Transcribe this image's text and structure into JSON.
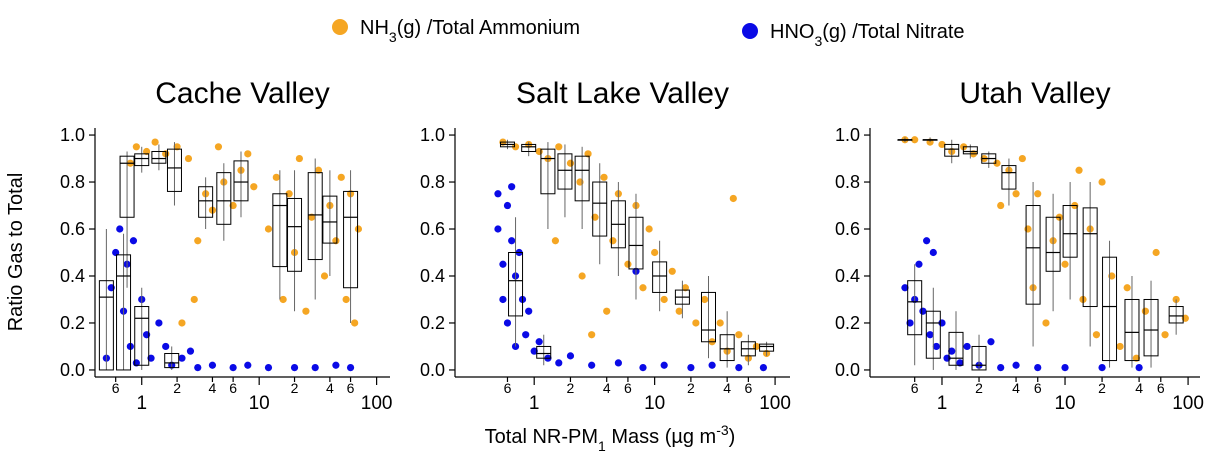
{
  "chart_data": [
    {
      "type": "scatter",
      "title": "Cache Valley",
      "ylabel": "Ratio Gas to Total",
      "xlog": true,
      "xlim": [
        0.4,
        130
      ],
      "ylim": [
        -0.03,
        1.03
      ],
      "xticks": [
        {
          "value": 0.6,
          "label": "6"
        },
        1,
        2,
        4,
        6,
        10,
        {
          "value": 20,
          "label": "2"
        },
        {
          "value": 40,
          "label": "4"
        },
        {
          "value": 60,
          "label": "6"
        },
        100
      ],
      "yticks": [
        {
          "value": 0,
          "label": "0.0"
        },
        0.2,
        0.4,
        0.6,
        0.8,
        {
          "value": 1,
          "label": "1.0"
        }
      ],
      "series": [
        {
          "name": "NH3(g) /Total Ammonium",
          "color": "#f5a623",
          "x": [
            0.8,
            0.9,
            1.1,
            1.3,
            1.6,
            2,
            2.5,
            3,
            3.5,
            4,
            5,
            6,
            7,
            8,
            9,
            12,
            14,
            16,
            18,
            20,
            22,
            25,
            28,
            32,
            36,
            40,
            45,
            50,
            55,
            60,
            65,
            70,
            2.8,
            2.2,
            4.5
          ],
          "values": [
            0.88,
            0.95,
            0.93,
            0.97,
            0.92,
            0.95,
            0.9,
            0.55,
            0.75,
            0.68,
            0.8,
            0.7,
            0.85,
            0.92,
            0.78,
            0.6,
            0.82,
            0.3,
            0.75,
            0.5,
            0.9,
            0.25,
            0.65,
            0.85,
            0.4,
            0.7,
            0.55,
            0.82,
            0.3,
            0.75,
            0.2,
            0.6,
            0.3,
            0.2,
            0.95
          ],
          "boxes": [
            {
              "x": 0.75,
              "low": 0.35,
              "q1": 0.65,
              "median": 0.88,
              "q3": 0.91,
              "high": 0.93
            },
            {
              "x": 1,
              "low": 0.84,
              "q1": 0.87,
              "median": 0.9,
              "q3": 0.92,
              "high": 0.95
            },
            {
              "x": 1.4,
              "low": 0.85,
              "q1": 0.88,
              "median": 0.9,
              "q3": 0.93,
              "high": 0.96
            },
            {
              "x": 1.9,
              "low": 0.7,
              "q1": 0.76,
              "median": 0.86,
              "q3": 0.94,
              "high": 0.97
            },
            {
              "x": 3.5,
              "low": 0.6,
              "q1": 0.65,
              "median": 0.72,
              "q3": 0.78,
              "high": 0.82
            },
            {
              "x": 5,
              "low": 0.55,
              "q1": 0.62,
              "median": 0.72,
              "q3": 0.84,
              "high": 0.88
            },
            {
              "x": 7,
              "low": 0.65,
              "q1": 0.72,
              "median": 0.8,
              "q3": 0.89,
              "high": 0.93
            },
            {
              "x": 15,
              "low": 0.3,
              "q1": 0.44,
              "median": 0.7,
              "q3": 0.75,
              "high": 0.85
            },
            {
              "x": 20,
              "low": 0.25,
              "q1": 0.42,
              "median": 0.61,
              "q3": 0.73,
              "high": 0.85
            },
            {
              "x": 30,
              "low": 0.3,
              "q1": 0.47,
              "median": 0.66,
              "q3": 0.84,
              "high": 0.9
            },
            {
              "x": 40,
              "low": 0.4,
              "q1": 0.54,
              "median": 0.63,
              "q3": 0.74,
              "high": 0.85
            },
            {
              "x": 60,
              "low": 0.2,
              "q1": 0.35,
              "median": 0.65,
              "q3": 0.76,
              "high": 0.85
            }
          ]
        },
        {
          "name": "HNO3(g) /Total Nitrate",
          "color": "#0a0ae6",
          "x": [
            0.5,
            0.55,
            0.6,
            0.65,
            0.7,
            0.75,
            0.8,
            0.85,
            0.9,
            1,
            1.1,
            1.2,
            1.4,
            1.6,
            1.8,
            2.2,
            2.6,
            3,
            4,
            6,
            8,
            12,
            20,
            30,
            45,
            60
          ],
          "values": [
            0.05,
            0.35,
            0.5,
            0.6,
            0.25,
            0.45,
            0.1,
            0.55,
            0.03,
            0.3,
            0.15,
            0.05,
            0.2,
            0.1,
            0.02,
            0.05,
            0.08,
            0.01,
            0.02,
            0.01,
            0.02,
            0.01,
            0.01,
            0.01,
            0.02,
            0.01
          ],
          "boxes": [
            {
              "x": 0.5,
              "low": 0,
              "q1": 0,
              "median": 0.31,
              "q3": 0.38,
              "high": 0.6
            },
            {
              "x": 0.7,
              "low": 0,
              "q1": 0,
              "median": 0.4,
              "q3": 0.49,
              "high": 0.58
            },
            {
              "x": 1,
              "low": 0,
              "q1": 0.02,
              "median": 0.22,
              "q3": 0.27,
              "high": 0.35
            },
            {
              "x": 1.8,
              "low": 0,
              "q1": 0.01,
              "median": 0.03,
              "q3": 0.07,
              "high": 0.1
            }
          ]
        }
      ]
    },
    {
      "type": "scatter",
      "title": "Salt Lake Valley",
      "xlabel": [
        "Total NR-PM",
        "1",
        " Mass (µg m",
        "-3",
        ")"
      ],
      "xlog": true,
      "xlim": [
        0.22,
        133
      ],
      "ylim": [
        -0.03,
        1.03
      ],
      "xticks": [
        {
          "value": 0.6,
          "label": "6"
        },
        1,
        2,
        4,
        6,
        10,
        {
          "value": 20,
          "label": "2"
        },
        {
          "value": 40,
          "label": "4"
        },
        {
          "value": 60,
          "label": "6"
        },
        100
      ],
      "yticks": [
        {
          "value": 0,
          "label": "0.0"
        },
        0.2,
        0.4,
        0.6,
        0.8,
        {
          "value": 1,
          "label": "1.0"
        }
      ],
      "series": [
        {
          "color": "#f5a623",
          "x": [
            0.55,
            0.7,
            0.9,
            1.1,
            1.3,
            1.6,
            2,
            2.4,
            2.8,
            3.2,
            3.8,
            4.5,
            5,
            6,
            7,
            8,
            9,
            10,
            12,
            14,
            16,
            18,
            22,
            26,
            30,
            35,
            40,
            45,
            50,
            60,
            70,
            85,
            1.5,
            2.5,
            4,
            3
          ],
          "values": [
            0.97,
            0.95,
            0.96,
            0.93,
            0.9,
            0.95,
            0.88,
            0.8,
            0.92,
            0.65,
            0.82,
            0.55,
            0.75,
            0.45,
            0.7,
            0.35,
            0.6,
            0.5,
            0.3,
            0.42,
            0.25,
            0.35,
            0.2,
            0.3,
            0.12,
            0.2,
            0.08,
            0.73,
            0.15,
            0.05,
            0.1,
            0.07,
            0.55,
            0.4,
            0.25,
            0.15
          ],
          "boxes": [
            {
              "x": 0.6,
              "low": 0.94,
              "q1": 0.95,
              "median": 0.96,
              "q3": 0.97,
              "high": 0.98
            },
            {
              "x": 0.9,
              "low": 0.91,
              "q1": 0.93,
              "median": 0.95,
              "q3": 0.96,
              "high": 0.97
            },
            {
              "x": 1.3,
              "low": 0.6,
              "q1": 0.75,
              "median": 0.9,
              "q3": 0.94,
              "high": 0.97
            },
            {
              "x": 1.8,
              "low": 0.65,
              "q1": 0.77,
              "median": 0.85,
              "q3": 0.92,
              "high": 0.96
            },
            {
              "x": 2.5,
              "low": 0.6,
              "q1": 0.72,
              "median": 0.85,
              "q3": 0.91,
              "high": 0.95
            },
            {
              "x": 3.5,
              "low": 0.45,
              "q1": 0.57,
              "median": 0.71,
              "q3": 0.8,
              "high": 0.88
            },
            {
              "x": 5,
              "low": 0.4,
              "q1": 0.52,
              "median": 0.62,
              "q3": 0.72,
              "high": 0.8
            },
            {
              "x": 7,
              "low": 0.3,
              "q1": 0.43,
              "median": 0.53,
              "q3": 0.65,
              "high": 0.75
            },
            {
              "x": 11,
              "low": 0.25,
              "q1": 0.33,
              "median": 0.4,
              "q3": 0.46,
              "high": 0.55
            },
            {
              "x": 17,
              "low": 0.22,
              "q1": 0.28,
              "median": 0.31,
              "q3": 0.34,
              "high": 0.38
            },
            {
              "x": 28,
              "low": 0.05,
              "q1": 0.12,
              "median": 0.17,
              "q3": 0.33,
              "high": 0.4
            },
            {
              "x": 40,
              "low": 0.01,
              "q1": 0.04,
              "median": 0.09,
              "q3": 0.15,
              "high": 0.25
            },
            {
              "x": 60,
              "low": 0.02,
              "q1": 0.06,
              "median": 0.09,
              "q3": 0.12,
              "high": 0.15
            },
            {
              "x": 85,
              "low": 0.06,
              "q1": 0.08,
              "median": 0.1,
              "q3": 0.11,
              "high": 0.12
            }
          ]
        },
        {
          "color": "#0a0ae6",
          "x": [
            0.5,
            0.5,
            0.55,
            0.55,
            0.6,
            0.6,
            0.65,
            0.7,
            0.7,
            0.75,
            0.8,
            0.85,
            0.9,
            1,
            1.1,
            1.3,
            1.6,
            2,
            3,
            5,
            7,
            8,
            12,
            20,
            30,
            50,
            80,
            0.65
          ],
          "values": [
            0.75,
            0.6,
            0.45,
            0.3,
            0.7,
            0.2,
            0.55,
            0.4,
            0.1,
            0.5,
            0.3,
            0.15,
            0.25,
            0.08,
            0.12,
            0.05,
            0.03,
            0.06,
            0.02,
            0.03,
            0.42,
            0.01,
            0.02,
            0.01,
            0.02,
            0.01,
            0.01,
            0.78
          ],
          "boxes": [
            {
              "x": 0.7,
              "low": 0.1,
              "q1": 0.23,
              "median": 0.38,
              "q3": 0.5,
              "high": 0.65
            },
            {
              "x": 1.2,
              "low": 0.02,
              "q1": 0.05,
              "median": 0.07,
              "q3": 0.1,
              "high": 0.15
            }
          ]
        }
      ]
    },
    {
      "type": "scatter",
      "title": "Utah Valley",
      "xlog": true,
      "xlim": [
        0.26,
        125
      ],
      "ylim": [
        -0.03,
        1.03
      ],
      "xticks": [
        {
          "value": 0.6,
          "label": "6"
        },
        1,
        2,
        4,
        6,
        10,
        {
          "value": 20,
          "label": "2"
        },
        {
          "value": 40,
          "label": "4"
        },
        {
          "value": 60,
          "label": "6"
        },
        100
      ],
      "yticks": [
        {
          "value": 0,
          "label": "0.0"
        },
        0.2,
        0.4,
        0.6,
        0.8,
        {
          "value": 1,
          "label": "1.0"
        }
      ],
      "series": [
        {
          "color": "#f5a623",
          "x": [
            0.5,
            0.6,
            0.8,
            1,
            1.2,
            1.5,
            1.8,
            2.2,
            2.8,
            3.5,
            4,
            4.5,
            5,
            5.5,
            6,
            7,
            8,
            9,
            10,
            12,
            14,
            16,
            18,
            20,
            24,
            28,
            32,
            38,
            45,
            55,
            65,
            80,
            95,
            3,
            13
          ],
          "values": [
            0.98,
            0.98,
            0.97,
            0.96,
            0.93,
            0.95,
            0.92,
            0.9,
            0.88,
            0.85,
            0.75,
            0.9,
            0.6,
            0.35,
            0.75,
            0.2,
            0.55,
            0.65,
            0.45,
            0.7,
            0.3,
            0.6,
            0.15,
            0.8,
            0.4,
            0.1,
            0.35,
            0.05,
            0.25,
            0.5,
            0.15,
            0.3,
            0.22,
            0.7,
            0.85
          ],
          "boxes": [
            {
              "x": 0.5,
              "low": 0.97,
              "q1": 0.98,
              "median": 0.98,
              "q3": 0.98,
              "high": 0.99
            },
            {
              "x": 0.8,
              "low": 0.97,
              "q1": 0.98,
              "median": 0.98,
              "q3": 0.98,
              "high": 0.99
            },
            {
              "x": 1.2,
              "low": 0.88,
              "q1": 0.91,
              "median": 0.94,
              "q3": 0.96,
              "high": 0.98
            },
            {
              "x": 1.7,
              "low": 0.9,
              "q1": 0.92,
              "median": 0.93,
              "q3": 0.95,
              "high": 0.96
            },
            {
              "x": 2.4,
              "low": 0.86,
              "q1": 0.88,
              "median": 0.9,
              "q3": 0.92,
              "high": 0.93
            },
            {
              "x": 3.5,
              "low": 0.7,
              "q1": 0.77,
              "median": 0.84,
              "q3": 0.87,
              "high": 0.9
            },
            {
              "x": 5.5,
              "low": 0.1,
              "q1": 0.28,
              "median": 0.52,
              "q3": 0.7,
              "high": 0.8
            },
            {
              "x": 8,
              "low": 0.25,
              "q1": 0.42,
              "median": 0.5,
              "q3": 0.65,
              "high": 0.75
            },
            {
              "x": 11,
              "low": 0.3,
              "q1": 0.48,
              "median": 0.58,
              "q3": 0.7,
              "high": 0.8
            },
            {
              "x": 16,
              "low": 0.1,
              "q1": 0.27,
              "median": 0.58,
              "q3": 0.69,
              "high": 0.8
            },
            {
              "x": 23,
              "low": 0.01,
              "q1": 0.04,
              "median": 0.27,
              "q3": 0.48,
              "high": 0.55
            },
            {
              "x": 35,
              "low": 0.01,
              "q1": 0.04,
              "median": 0.16,
              "q3": 0.3,
              "high": 0.4
            },
            {
              "x": 50,
              "low": 0.01,
              "q1": 0.06,
              "median": 0.17,
              "q3": 0.3,
              "high": 0.38
            },
            {
              "x": 80,
              "low": 0.15,
              "q1": 0.2,
              "median": 0.23,
              "q3": 0.27,
              "high": 0.3
            }
          ]
        },
        {
          "color": "#0a0ae6",
          "x": [
            0.5,
            0.55,
            0.6,
            0.65,
            0.7,
            0.75,
            0.8,
            0.9,
            1,
            1.1,
            1.2,
            1.4,
            1.6,
            2,
            2.5,
            3,
            4,
            6,
            10,
            20,
            40,
            0.85
          ],
          "values": [
            0.35,
            0.2,
            0.3,
            0.45,
            0.25,
            0.55,
            0.15,
            0.1,
            0.2,
            0.05,
            0.08,
            0.03,
            0.1,
            0.02,
            0.12,
            0.01,
            0.02,
            0.01,
            0.01,
            0.01,
            0.01,
            0.5
          ],
          "boxes": [
            {
              "x": 0.6,
              "low": 0.02,
              "q1": 0.15,
              "median": 0.29,
              "q3": 0.38,
              "high": 0.45
            },
            {
              "x": 0.85,
              "low": 0,
              "q1": 0.05,
              "median": 0.2,
              "q3": 0.25,
              "high": 0.35
            },
            {
              "x": 1.3,
              "low": 0,
              "q1": 0.02,
              "median": 0.05,
              "q3": 0.16,
              "high": 0.25
            },
            {
              "x": 2,
              "low": 0,
              "q1": 0,
              "median": 0.02,
              "q3": 0.1,
              "high": 0.15
            }
          ]
        }
      ]
    }
  ]
}
